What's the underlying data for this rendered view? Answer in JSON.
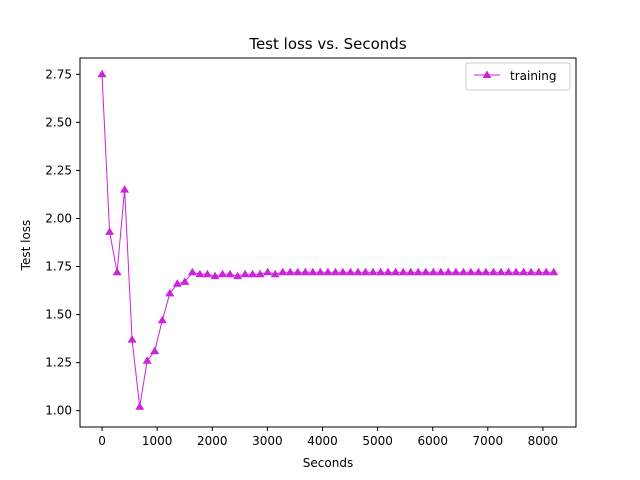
{
  "chart_data": {
    "type": "line",
    "title": "Test loss  vs. Seconds",
    "xlabel": "Seconds",
    "ylabel": "Test loss",
    "xlim": [
      -400,
      8600
    ],
    "ylim": [
      0.915,
      2.835
    ],
    "xticks": [
      0,
      1000,
      2000,
      3000,
      4000,
      5000,
      6000,
      7000,
      8000
    ],
    "yticks": [
      1.0,
      1.25,
      1.5,
      1.75,
      2.0,
      2.25,
      2.5,
      2.75
    ],
    "xtick_labels": [
      "0",
      "1000",
      "2000",
      "3000",
      "4000",
      "5000",
      "6000",
      "7000",
      "8000"
    ],
    "ytick_labels": [
      "1.00",
      "1.25",
      "1.50",
      "1.75",
      "2.00",
      "2.25",
      "2.50",
      "2.75"
    ],
    "grid": false,
    "legend_position": "top-right",
    "series": [
      {
        "name": "training",
        "color": "#cc22dd",
        "marker": "triangle-up",
        "x": [
          0,
          137,
          273,
          410,
          546,
          683,
          820,
          956,
          1093,
          1229,
          1366,
          1502,
          1639,
          1776,
          1912,
          2049,
          2185,
          2322,
          2459,
          2595,
          2732,
          2868,
          3005,
          3142,
          3278,
          3415,
          3551,
          3688,
          3825,
          3961,
          4098,
          4234,
          4371,
          4508,
          4644,
          4781,
          4917,
          5054,
          5191,
          5327,
          5464,
          5600,
          5737,
          5874,
          6010,
          6147,
          6283,
          6420,
          6557,
          6693,
          6830,
          6966,
          7103,
          7240,
          7376,
          7513,
          7649,
          7786,
          7923,
          8059,
          8196
        ],
        "y": [
          2.75,
          1.93,
          1.72,
          2.15,
          1.37,
          1.02,
          1.26,
          1.31,
          1.47,
          1.61,
          1.66,
          1.67,
          1.72,
          1.71,
          1.71,
          1.7,
          1.71,
          1.71,
          1.7,
          1.71,
          1.71,
          1.71,
          1.72,
          1.71,
          1.72,
          1.72,
          1.72,
          1.72,
          1.72,
          1.72,
          1.72,
          1.72,
          1.72,
          1.72,
          1.72,
          1.72,
          1.72,
          1.72,
          1.72,
          1.72,
          1.72,
          1.72,
          1.72,
          1.72,
          1.72,
          1.72,
          1.72,
          1.72,
          1.72,
          1.72,
          1.72,
          1.72,
          1.72,
          1.72,
          1.72,
          1.72,
          1.72,
          1.72,
          1.72,
          1.72,
          1.72
        ]
      }
    ]
  }
}
